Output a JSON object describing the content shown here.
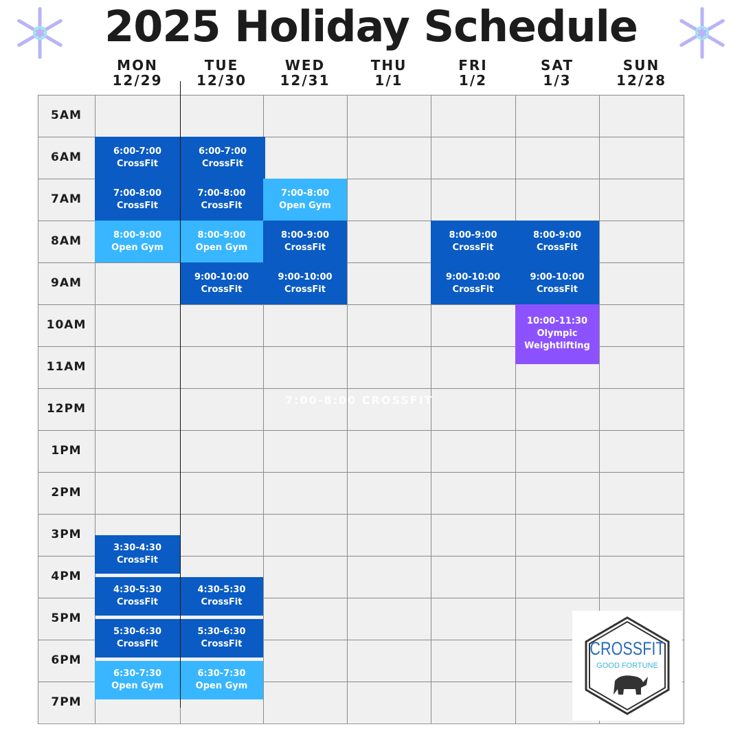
{
  "title": "2025 Holiday Schedule",
  "days": [
    {
      "name": "MON",
      "date": "12/29"
    },
    {
      "name": "TUE",
      "date": "12/30"
    },
    {
      "name": "WED",
      "date": "12/31"
    },
    {
      "name": "THU",
      "date": "1/1"
    },
    {
      "name": "FRI",
      "date": "1/2"
    },
    {
      "name": "SAT",
      "date": "1/3"
    },
    {
      "name": "SUN",
      "date": "12/28"
    }
  ],
  "times": [
    "5AM",
    "6AM",
    "7AM",
    "8AM",
    "9AM",
    "10AM",
    "11AM",
    "12PM",
    "1PM",
    "2PM",
    "3PM",
    "4PM",
    "5PM",
    "6PM",
    "7PM"
  ],
  "colors": {
    "crossfit": "#0a5bc4",
    "open_gym": "#38b6ff",
    "olympic": "#8c52ff"
  },
  "events": [
    {
      "day": 0,
      "start": 6,
      "end": 7,
      "time": "6:00-7:00",
      "title": "CrossFit",
      "kind": "crossfit"
    },
    {
      "day": 0,
      "start": 7,
      "end": 8,
      "time": "7:00-8:00",
      "title": "CrossFit",
      "kind": "crossfit"
    },
    {
      "day": 0,
      "start": 8,
      "end": 9,
      "time": "8:00-9:00",
      "title": "Open Gym",
      "kind": "open_gym"
    },
    {
      "day": 0,
      "start": 15.5,
      "end": 16.5,
      "time": "3:30-4:30",
      "title": "CrossFit",
      "kind": "crossfit"
    },
    {
      "day": 0,
      "start": 16.5,
      "end": 17.5,
      "time": "4:30-5:30",
      "title": "CrossFit",
      "kind": "crossfit"
    },
    {
      "day": 0,
      "start": 17.5,
      "end": 18.5,
      "time": "5:30-6:30",
      "title": "CrossFit",
      "kind": "crossfit"
    },
    {
      "day": 0,
      "start": 18.5,
      "end": 19.5,
      "time": "6:30-7:30",
      "title": "Open Gym",
      "kind": "open_gym"
    },
    {
      "day": 1,
      "start": 6,
      "end": 7,
      "time": "6:00-7:00",
      "title": "CrossFit",
      "kind": "crossfit"
    },
    {
      "day": 1,
      "start": 7,
      "end": 8,
      "time": "7:00-8:00",
      "title": "CrossFit",
      "kind": "crossfit"
    },
    {
      "day": 1,
      "start": 8,
      "end": 9,
      "time": "8:00-9:00",
      "title": "Open Gym",
      "kind": "open_gym"
    },
    {
      "day": 1,
      "start": 9,
      "end": 10,
      "time": "9:00-10:00",
      "title": "CrossFit",
      "kind": "crossfit"
    },
    {
      "day": 1,
      "start": 16.5,
      "end": 17.5,
      "time": "4:30-5:30",
      "title": "CrossFit",
      "kind": "crossfit"
    },
    {
      "day": 1,
      "start": 17.5,
      "end": 18.5,
      "time": "5:30-6:30",
      "title": "CrossFit",
      "kind": "crossfit"
    },
    {
      "day": 1,
      "start": 18.5,
      "end": 19.5,
      "time": "6:30-7:30",
      "title": "Open Gym",
      "kind": "open_gym"
    },
    {
      "day": 2,
      "start": 7,
      "end": 8,
      "time": "7:00-8:00",
      "title": "Open Gym",
      "kind": "open_gym"
    },
    {
      "day": 2,
      "start": 8,
      "end": 9,
      "time": "8:00-9:00",
      "title": "CrossFit",
      "kind": "crossfit"
    },
    {
      "day": 2,
      "start": 9,
      "end": 10,
      "time": "9:00-10:00",
      "title": "CrossFit",
      "kind": "crossfit"
    },
    {
      "day": 4,
      "start": 8,
      "end": 9,
      "time": "8:00-9:00",
      "title": "CrossFit",
      "kind": "crossfit"
    },
    {
      "day": 4,
      "start": 9,
      "end": 10,
      "time": "9:00-10:00",
      "title": "CrossFit",
      "kind": "crossfit"
    },
    {
      "day": 5,
      "start": 8,
      "end": 9,
      "time": "8:00-9:00",
      "title": "CrossFit",
      "kind": "crossfit"
    },
    {
      "day": 5,
      "start": 9,
      "end": 10,
      "time": "9:00-10:00",
      "title": "CrossFit",
      "kind": "crossfit"
    },
    {
      "day": 5,
      "start": 10,
      "end": 11.5,
      "time": "10:00-11:30",
      "title": "Olympic Weightlifting",
      "kind": "olympic"
    }
  ],
  "ghost_text": "7:00-8:00 CROSSFIT",
  "logo": {
    "name": "CROSSFIT",
    "sub": "GOOD FORTUNE",
    "icon": "elephant-icon"
  }
}
